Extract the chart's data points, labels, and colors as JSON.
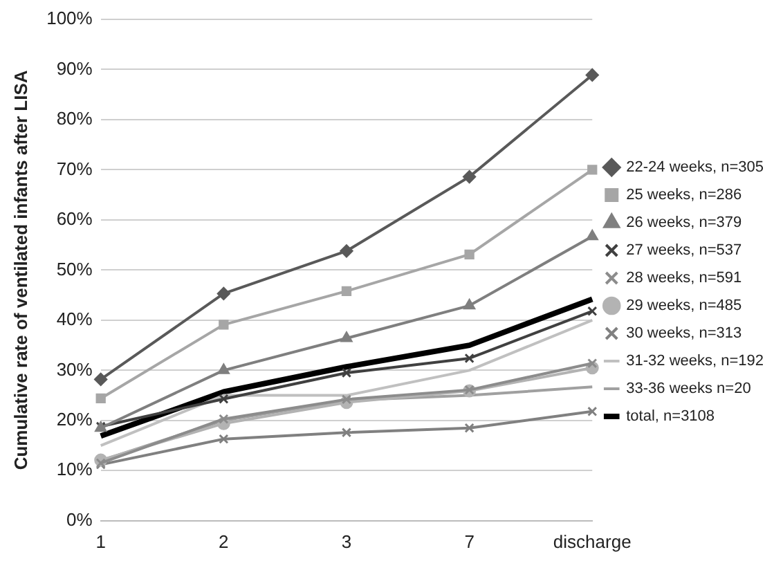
{
  "chart_data": {
    "type": "line",
    "ylabel": "Cumulative rate of ventilated infants after LISA",
    "categories": [
      "1",
      "2",
      "3",
      "7",
      "discharge"
    ],
    "ylim": [
      0,
      100
    ],
    "yticks": [
      {
        "value": 0,
        "label": "0%"
      },
      {
        "value": 10,
        "label": "10%"
      },
      {
        "value": 20,
        "label": "20%"
      },
      {
        "value": 30,
        "label": "30%"
      },
      {
        "value": 40,
        "label": "40%"
      },
      {
        "value": 50,
        "label": "50%"
      },
      {
        "value": 60,
        "label": "60%"
      },
      {
        "value": 70,
        "label": "70%"
      },
      {
        "value": 80,
        "label": "80%"
      },
      {
        "value": 90,
        "label": "90%"
      },
      {
        "value": 100,
        "label": "100%"
      }
    ],
    "grid": "y",
    "legend": "right",
    "series": [
      {
        "name": "22-24 weeks, n=305",
        "color": "#595959",
        "marker": "diamond",
        "values": [
          28.2,
          45.3,
          53.8,
          68.6,
          88.9
        ]
      },
      {
        "name": "25 weeks, n=286",
        "color": "#a6a6a6",
        "marker": "square",
        "values": [
          24.4,
          39.1,
          45.8,
          53.1,
          70
        ]
      },
      {
        "name": "26 weeks, n=379",
        "color": "#7f7f7f",
        "marker": "triangle",
        "values": [
          18.5,
          30,
          36.4,
          42.9,
          56.7
        ]
      },
      {
        "name": "27 weeks, n=537",
        "color": "#404040",
        "marker": "cross",
        "values": [
          18.8,
          24.3,
          29.5,
          32.4,
          41.8
        ]
      },
      {
        "name": "28 weeks, n=591",
        "color": "#8c8c8c",
        "marker": "cross",
        "values": [
          11.5,
          20.3,
          24.2,
          26.1,
          31.4
        ]
      },
      {
        "name": "29 weeks, n=485",
        "color": "#b3b3b3",
        "marker": "circle",
        "values": [
          12.1,
          19.4,
          23.6,
          25.9,
          30.5
        ]
      },
      {
        "name": "30 weeks, n=313",
        "color": "#808080",
        "marker": "cross",
        "values": [
          11.2,
          16.3,
          17.6,
          18.5,
          21.8
        ]
      },
      {
        "name": "31-32 weeks, n=192",
        "color": "#c0c0c0",
        "marker": "none",
        "values": [
          15,
          25,
          25,
          30,
          40
        ]
      },
      {
        "name": "33-36 weeks n=20",
        "color": "#a0a0a0",
        "marker": "none",
        "values": [
          12,
          20,
          24,
          25,
          26.7
        ]
      },
      {
        "name": "total, n=3108",
        "color": "#000000",
        "marker": "none",
        "values": [
          16.9,
          25.7,
          30.7,
          35,
          44.2
        ]
      }
    ]
  }
}
